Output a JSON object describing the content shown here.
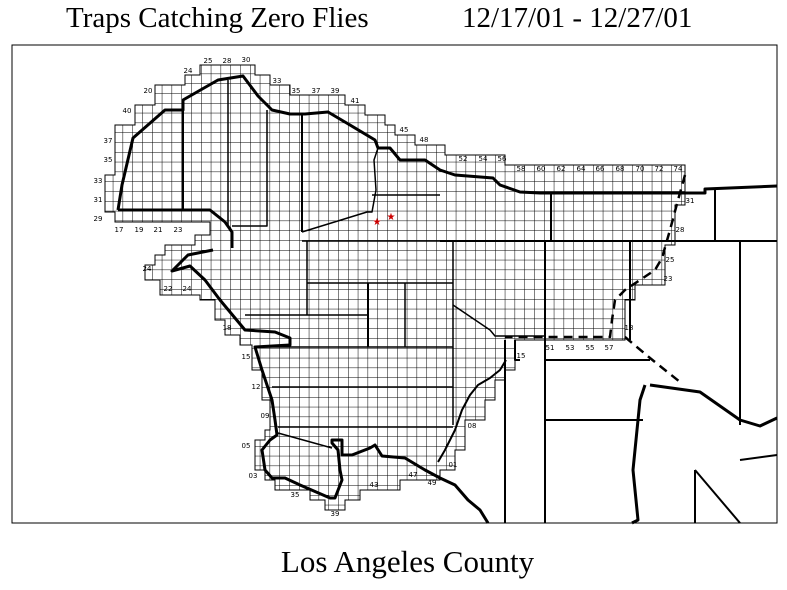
{
  "title": "Traps Catching Zero Flies",
  "date_range": "12/17/01 - 12/27/01",
  "subtitle": "Los Angeles County",
  "colors": {
    "trap_marker": "#cc0000",
    "grid": "#000000",
    "background": "#ffffff"
  },
  "markers": [
    {
      "icon": "red-star-icon"
    },
    {
      "icon": "red-star-icon"
    }
  ],
  "grid_labels": [
    "25",
    "28",
    "30",
    "24",
    "20",
    "40",
    "33",
    "35",
    "37",
    "39",
    "41",
    "45",
    "48",
    "52",
    "54",
    "56",
    "58",
    "60",
    "62",
    "64",
    "66",
    "68",
    "70",
    "72",
    "74",
    "37",
    "35",
    "33",
    "31",
    "29",
    "17",
    "19",
    "21",
    "23",
    "31",
    "28",
    "25",
    "23",
    "18",
    "51",
    "53",
    "55",
    "57",
    "15",
    "24",
    "22",
    "24",
    "18",
    "15",
    "12",
    "09",
    "08",
    "05",
    "03",
    "35",
    "39",
    "43",
    "47",
    "49",
    "01"
  ]
}
